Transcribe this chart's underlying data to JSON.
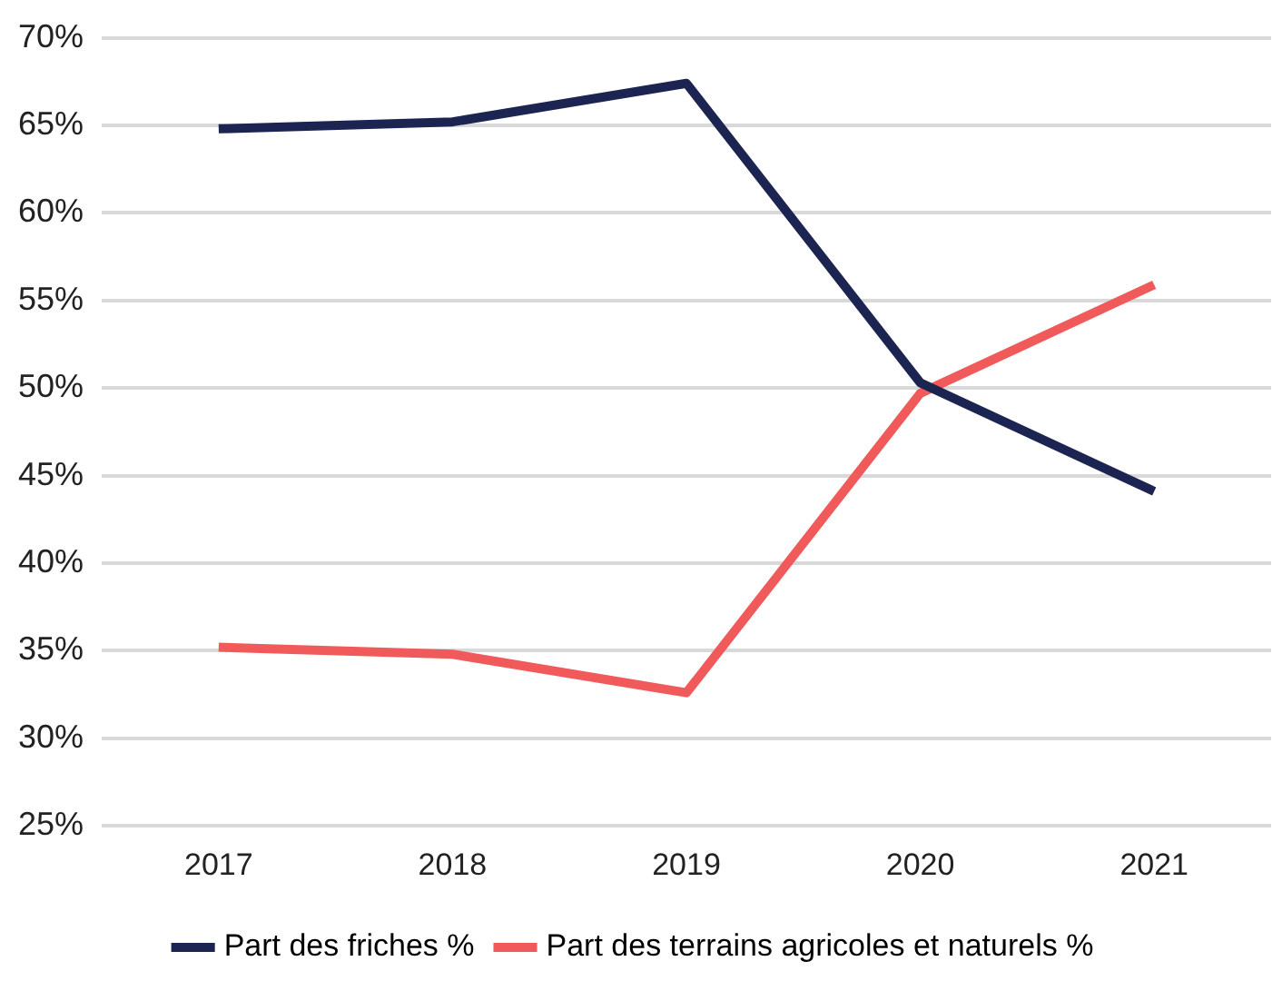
{
  "chart_data": {
    "type": "line",
    "categories": [
      "2017",
      "2018",
      "2019",
      "2020",
      "2021"
    ],
    "series": [
      {
        "name": "Part des friches %",
        "color": "#1c2451",
        "values": [
          64.8,
          65.2,
          67.4,
          50.3,
          44.1
        ]
      },
      {
        "name": "Part des terrains agricoles et naturels %",
        "color": "#f05a5a",
        "values": [
          35.2,
          34.8,
          32.6,
          49.7,
          55.9
        ]
      }
    ],
    "ylim": [
      25,
      70
    ],
    "yticks": [
      {
        "value": 25,
        "label": "25%"
      },
      {
        "value": 30,
        "label": "30%"
      },
      {
        "value": 35,
        "label": "35%"
      },
      {
        "value": 40,
        "label": "40%"
      },
      {
        "value": 45,
        "label": "45%"
      },
      {
        "value": 50,
        "label": "50%"
      },
      {
        "value": 55,
        "label": "55%"
      },
      {
        "value": 60,
        "label": "60%"
      },
      {
        "value": 65,
        "label": "65%"
      },
      {
        "value": 70,
        "label": "70%"
      }
    ],
    "grid": "y",
    "legend": "bottom",
    "marker": "none",
    "line_style": "solid"
  }
}
